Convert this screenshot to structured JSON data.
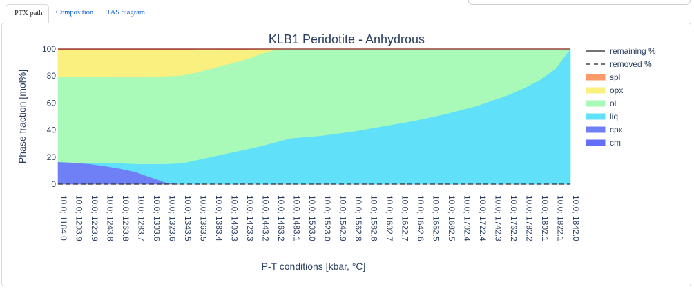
{
  "tabs": [
    {
      "label": "PTX path",
      "active": true
    },
    {
      "label": "Composition",
      "active": false
    },
    {
      "label": "TAS diagram",
      "active": false
    }
  ],
  "chart_data": {
    "type": "area",
    "title": "KLB1 Peridotite - Anhydrous",
    "xlabel": "P-T conditions [kbar, °C]",
    "ylabel": "Phase fraction [mol%]",
    "ylim": [
      0,
      100
    ],
    "yticks": [
      0,
      20,
      40,
      60,
      80,
      100
    ],
    "x": [
      "10.0; 1184.0",
      "10.0; 1203.9",
      "10.0; 1223.9",
      "10.0; 1243.8",
      "10.0; 1263.8",
      "10.0; 1283.7",
      "10.0; 1303.6",
      "10.0; 1323.6",
      "10.0; 1343.5",
      "10.0; 1363.5",
      "10.0; 1383.4",
      "10.0; 1403.3",
      "10.0; 1423.3",
      "10.0; 1443.2",
      "10.0; 1463.2",
      "10.0; 1483.1",
      "10.0; 1503.0",
      "10.0; 1523.0",
      "10.0; 1542.9",
      "10.0; 1562.8",
      "10.0; 1582.8",
      "10.0; 1602.7",
      "10.0; 1622.7",
      "10.0; 1642.6",
      "10.0; 1662.5",
      "10.0; 1682.5",
      "10.0; 1702.4",
      "10.0; 1722.4",
      "10.0; 1742.3",
      "10.0; 1762.2",
      "10.0; 1782.2",
      "10.0; 1802.1",
      "10.0; 1822.1",
      "10.0; 1842.0"
    ],
    "series": [
      {
        "name": "cm",
        "color": "#636efa",
        "values": [
          0,
          0,
          0,
          0,
          0,
          0,
          0,
          0,
          0,
          0,
          0,
          0,
          0,
          0,
          0,
          0,
          0,
          0,
          0,
          0,
          0,
          0,
          0,
          0,
          0,
          0,
          0,
          0,
          0,
          0,
          0,
          0,
          0,
          0
        ]
      },
      {
        "name": "cpx",
        "color": "#6f7ff5",
        "values": [
          16.5,
          16,
          15,
          13.5,
          11.5,
          9,
          5,
          1,
          0,
          0,
          0,
          0,
          0,
          0,
          0,
          0,
          0,
          0,
          0,
          0,
          0,
          0,
          0,
          0,
          0,
          0,
          0,
          0,
          0,
          0,
          0,
          0,
          0,
          0
        ]
      },
      {
        "name": "liq",
        "color": "#61e0fa",
        "values": [
          0,
          0,
          1,
          2.5,
          4,
          6,
          10,
          14,
          15.5,
          18,
          20.5,
          23,
          25.5,
          28,
          31,
          34,
          35,
          36,
          37.5,
          39,
          41,
          43,
          45,
          47,
          49.5,
          52,
          55,
          58,
          62,
          66,
          71,
          77,
          85,
          100
        ]
      },
      {
        "name": "ol",
        "color": "#a9fab9",
        "values": [
          62.8,
          63.3,
          63.3,
          63.3,
          63.7,
          64.2,
          64.2,
          64.9,
          65,
          64.8,
          65.5,
          65.9,
          66.4,
          68.1,
          68.6,
          66,
          65,
          64,
          62.5,
          61,
          59,
          57,
          55,
          53,
          50.5,
          48,
          45,
          42,
          38,
          34,
          29,
          23,
          15,
          0
        ]
      },
      {
        "name": "opx",
        "color": "#faf07f",
        "values": [
          20,
          20,
          20,
          20,
          20,
          20,
          20,
          19.5,
          19,
          17,
          13.8,
          10.8,
          7.8,
          3.8,
          0.4,
          0,
          0,
          0,
          0,
          0,
          0,
          0,
          0,
          0,
          0,
          0,
          0,
          0,
          0,
          0,
          0,
          0,
          0,
          0
        ]
      },
      {
        "name": "spl",
        "color": "#fa9a68",
        "values": [
          0.7,
          0.7,
          0.7,
          0.7,
          0.8,
          0.8,
          0.8,
          0.6,
          0.5,
          0.2,
          0.2,
          0.3,
          0.3,
          0.1,
          0,
          0,
          0,
          0,
          0,
          0,
          0,
          0,
          0,
          0,
          0,
          0,
          0,
          0,
          0,
          0,
          0,
          0,
          0,
          0
        ]
      }
    ],
    "lines": [
      {
        "name": "remaining %",
        "style": "solid",
        "value": 100
      },
      {
        "name": "removed %",
        "style": "dashed",
        "value": 0
      }
    ],
    "legend": [
      {
        "name": "remaining %",
        "kind": "solid-line"
      },
      {
        "name": "removed %",
        "kind": "dashed-line"
      },
      {
        "name": "spl",
        "kind": "area",
        "color": "#fa9a68"
      },
      {
        "name": "opx",
        "kind": "area",
        "color": "#faf07f"
      },
      {
        "name": "ol",
        "kind": "area",
        "color": "#a9fab9"
      },
      {
        "name": "liq",
        "kind": "area",
        "color": "#61e0fa"
      },
      {
        "name": "cpx",
        "kind": "area",
        "color": "#6f7ff5"
      },
      {
        "name": "cm",
        "kind": "area",
        "color": "#636efa"
      }
    ],
    "legend_position": "right"
  }
}
